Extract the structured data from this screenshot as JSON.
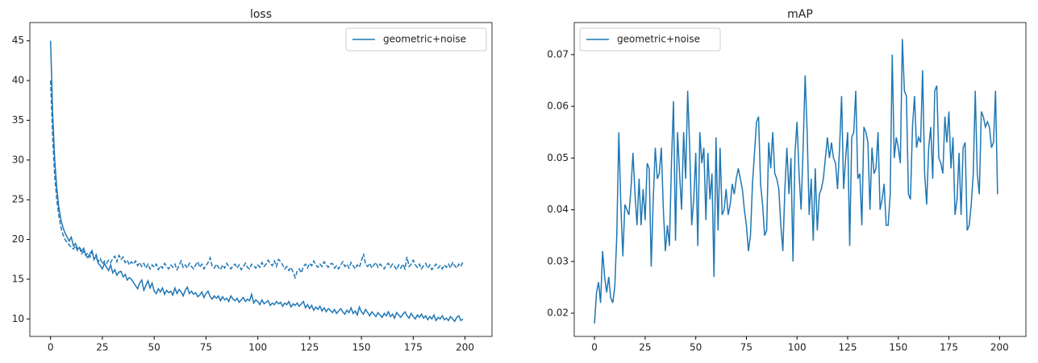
{
  "chart_data": [
    {
      "type": "line",
      "title": "loss",
      "legend": "upper right",
      "grid": false,
      "xlim": [
        -10,
        213
      ],
      "ylim": [
        7.8,
        47.3
      ],
      "xticks": [
        0,
        25,
        50,
        75,
        100,
        125,
        150,
        175,
        200
      ],
      "yticks": [
        10,
        15,
        20,
        25,
        30,
        35,
        40,
        45
      ],
      "x": [
        0,
        1,
        2,
        3,
        4,
        5,
        6,
        7,
        8,
        9,
        10,
        11,
        12,
        13,
        14,
        15,
        16,
        17,
        18,
        19,
        20,
        21,
        22,
        23,
        24,
        25,
        26,
        27,
        28,
        29,
        30,
        31,
        32,
        33,
        34,
        35,
        36,
        37,
        38,
        39,
        40,
        41,
        42,
        43,
        44,
        45,
        46,
        47,
        48,
        49,
        50,
        51,
        52,
        53,
        54,
        55,
        56,
        57,
        58,
        59,
        60,
        61,
        62,
        63,
        64,
        65,
        66,
        67,
        68,
        69,
        70,
        71,
        72,
        73,
        74,
        75,
        76,
        77,
        78,
        79,
        80,
        81,
        82,
        83,
        84,
        85,
        86,
        87,
        88,
        89,
        90,
        91,
        92,
        93,
        94,
        95,
        96,
        97,
        98,
        99,
        100,
        101,
        102,
        103,
        104,
        105,
        106,
        107,
        108,
        109,
        110,
        111,
        112,
        113,
        114,
        115,
        116,
        117,
        118,
        119,
        120,
        121,
        122,
        123,
        124,
        125,
        126,
        127,
        128,
        129,
        130,
        131,
        132,
        133,
        134,
        135,
        136,
        137,
        138,
        139,
        140,
        141,
        142,
        143,
        144,
        145,
        146,
        147,
        148,
        149,
        150,
        151,
        152,
        153,
        154,
        155,
        156,
        157,
        158,
        159,
        160,
        161,
        162,
        163,
        164,
        165,
        166,
        167,
        168,
        169,
        170,
        171,
        172,
        173,
        174,
        175,
        176,
        177,
        178,
        179,
        180,
        181,
        182,
        183,
        184,
        185,
        186,
        187,
        188,
        189,
        190,
        191,
        192,
        193,
        194,
        195,
        196,
        197,
        198,
        199
      ],
      "series": [
        {
          "name": "geometric+noise",
          "color": "#1f77b4",
          "linestyle": "solid",
          "values": [
            45,
            36,
            30,
            26.5,
            24,
            22.5,
            21.5,
            20.8,
            20.3,
            19.8,
            20.3,
            19.2,
            19.5,
            18.8,
            19.0,
            18.5,
            18.9,
            18.0,
            17.7,
            18.2,
            18.6,
            17.5,
            17.9,
            17.0,
            16.7,
            16.3,
            17.0,
            16.5,
            16.1,
            16.8,
            15.8,
            16.2,
            15.5,
            15.9,
            16.0,
            15.3,
            15.6,
            14.9,
            15.2,
            15.0,
            14.6,
            14.2,
            13.8,
            14.5,
            14.9,
            13.6,
            14.2,
            14.8,
            13.9,
            14.5,
            13.5,
            13.2,
            13.8,
            13.4,
            13.9,
            13.1,
            13.6,
            13.3,
            13.5,
            13.0,
            13.9,
            13.2,
            13.7,
            13.4,
            12.9,
            13.6,
            14.0,
            13.2,
            13.5,
            13.1,
            13.3,
            12.8,
            13.0,
            13.4,
            12.7,
            13.2,
            13.5,
            12.8,
            12.5,
            12.9,
            12.6,
            12.9,
            12.3,
            12.8,
            12.4,
            12.6,
            12.2,
            12.9,
            12.5,
            12.3,
            12.6,
            12.1,
            12.4,
            12.7,
            12.2,
            12.5,
            12.3,
            13.1,
            12.0,
            12.4,
            12.2,
            11.8,
            12.4,
            11.9,
            12.1,
            12.3,
            11.7,
            12.0,
            11.8,
            12.2,
            11.9,
            12.1,
            11.6,
            12.0,
            11.8,
            12.2,
            11.5,
            11.9,
            11.7,
            12.0,
            11.6,
            11.9,
            12.2,
            11.4,
            11.8,
            11.3,
            11.7,
            11.1,
            11.5,
            11.2,
            11.6,
            11.0,
            11.4,
            10.9,
            11.3,
            11.1,
            10.8,
            11.2,
            10.7,
            11.0,
            11.3,
            10.9,
            10.6,
            11.1,
            10.8,
            11.4,
            10.7,
            11.0,
            10.5,
            11.5,
            10.9,
            10.6,
            11.2,
            10.8,
            10.4,
            10.9,
            10.6,
            10.3,
            10.8,
            10.5,
            10.2,
            10.7,
            10.4,
            10.9,
            10.3,
            10.6,
            10.1,
            10.8,
            10.5,
            10.2,
            10.6,
            10.9,
            10.4,
            10.1,
            10.7,
            10.3,
            10.0,
            10.5,
            10.2,
            10.6,
            10.1,
            10.4,
            9.9,
            10.3,
            10.0,
            10.5,
            9.8,
            10.2,
            10.0,
            10.4,
            9.9,
            10.1,
            9.8,
            10.3,
            10.0,
            9.7,
            10.2,
            10.4,
            9.8,
            10.0
          ]
        },
        {
          "color": "#1f77b4",
          "linestyle": "dashed",
          "values": [
            40,
            33,
            28,
            25,
            23,
            21.5,
            20.6,
            20,
            19.6,
            19.3,
            19.0,
            18.8,
            19.2,
            18.6,
            18.9,
            18.2,
            18.5,
            18.0,
            18.3,
            17.8,
            18.4,
            17.5,
            18.1,
            17.2,
            17.6,
            16.9,
            17.3,
            17.0,
            17.4,
            17.1,
            17.6,
            17.9,
            17.2,
            18.0,
            17.5,
            17.8,
            17.1,
            17.4,
            16.8,
            17.2,
            16.9,
            17.3,
            16.7,
            17.1,
            16.6,
            17.0,
            16.4,
            16.9,
            16.3,
            16.8,
            16.5,
            16.9,
            16.2,
            16.7,
            16.4,
            17.0,
            16.6,
            16.3,
            16.8,
            16.5,
            16.9,
            16.2,
            16.7,
            17.3,
            16.5,
            16.8,
            16.4,
            17.0,
            16.6,
            16.3,
            16.8,
            17.2,
            16.5,
            16.9,
            16.3,
            16.7,
            17.1,
            17.7,
            16.6,
            16.4,
            16.9,
            16.5,
            16.2,
            16.8,
            16.4,
            17.0,
            16.6,
            16.3,
            16.7,
            16.9,
            16.4,
            16.8,
            16.2,
            16.6,
            17.0,
            16.5,
            16.3,
            16.9,
            16.7,
            16.4,
            16.8,
            16.5,
            17.1,
            16.6,
            16.9,
            17.4,
            17.0,
            16.7,
            17.3,
            16.6,
            17.5,
            17.2,
            16.8,
            16.3,
            16.6,
            16.1,
            16.5,
            15.9,
            15.2,
            16.0,
            16.3,
            15.8,
            16.6,
            16.9,
            16.4,
            17.0,
            16.7,
            17.3,
            16.8,
            16.5,
            16.9,
            16.6,
            17.2,
            16.8,
            16.5,
            16.9,
            17.0,
            16.4,
            16.7,
            16.3,
            16.8,
            17.2,
            16.6,
            16.9,
            16.4,
            17.1,
            16.7,
            16.3,
            16.8,
            16.5,
            17.3,
            18.2,
            16.9,
            16.6,
            17.0,
            16.4,
            16.8,
            17.1,
            16.5,
            16.9,
            16.6,
            16.3,
            16.8,
            17.0,
            16.5,
            16.9,
            16.6,
            16.2,
            16.8,
            16.4,
            16.9,
            16.3,
            17.8,
            16.6,
            16.9,
            17.4,
            16.8,
            16.5,
            16.9,
            16.3,
            16.7,
            17.0,
            16.4,
            16.8,
            16.2,
            16.6,
            16.9,
            16.4,
            16.7,
            16.3,
            16.8,
            16.5,
            16.9,
            16.4,
            17.1,
            16.7,
            16.4,
            16.9,
            16.6,
            17.2
          ]
        }
      ]
    },
    {
      "type": "line",
      "title": "mAP",
      "legend": "upper left",
      "grid": false,
      "xlim": [
        -10,
        213
      ],
      "ylim": [
        0.0155,
        0.0762
      ],
      "xticks": [
        0,
        25,
        50,
        75,
        100,
        125,
        150,
        175,
        200
      ],
      "yticks": [
        0.02,
        0.03,
        0.04,
        0.05,
        0.06,
        0.07
      ],
      "x": [
        0,
        1,
        2,
        3,
        4,
        5,
        6,
        7,
        8,
        9,
        10,
        11,
        12,
        13,
        14,
        15,
        16,
        17,
        18,
        19,
        20,
        21,
        22,
        23,
        24,
        25,
        26,
        27,
        28,
        29,
        30,
        31,
        32,
        33,
        34,
        35,
        36,
        37,
        38,
        39,
        40,
        41,
        42,
        43,
        44,
        45,
        46,
        47,
        48,
        49,
        50,
        51,
        52,
        53,
        54,
        55,
        56,
        57,
        58,
        59,
        60,
        61,
        62,
        63,
        64,
        65,
        66,
        67,
        68,
        69,
        70,
        71,
        72,
        73,
        74,
        75,
        76,
        77,
        78,
        79,
        80,
        81,
        82,
        83,
        84,
        85,
        86,
        87,
        88,
        89,
        90,
        91,
        92,
        93,
        94,
        95,
        96,
        97,
        98,
        99,
        100,
        101,
        102,
        103,
        104,
        105,
        106,
        107,
        108,
        109,
        110,
        111,
        112,
        113,
        114,
        115,
        116,
        117,
        118,
        119,
        120,
        121,
        122,
        123,
        124,
        125,
        126,
        127,
        128,
        129,
        130,
        131,
        132,
        133,
        134,
        135,
        136,
        137,
        138,
        139,
        140,
        141,
        142,
        143,
        144,
        145,
        146,
        147,
        148,
        149,
        150,
        151,
        152,
        153,
        154,
        155,
        156,
        157,
        158,
        159,
        160,
        161,
        162,
        163,
        164,
        165,
        166,
        167,
        168,
        169,
        170,
        171,
        172,
        173,
        174,
        175,
        176,
        177,
        178,
        179,
        180,
        181,
        182,
        183,
        184,
        185,
        186,
        187,
        188,
        189,
        190,
        191,
        192,
        193,
        194,
        195,
        196,
        197,
        198,
        199
      ],
      "series": [
        {
          "name": "geometric+noise",
          "color": "#1f77b4",
          "linestyle": "solid",
          "values": [
            0.018,
            0.024,
            0.026,
            0.022,
            0.032,
            0.027,
            0.024,
            0.027,
            0.023,
            0.022,
            0.025,
            0.035,
            0.055,
            0.041,
            0.031,
            0.041,
            0.04,
            0.039,
            0.044,
            0.051,
            0.043,
            0.037,
            0.046,
            0.037,
            0.044,
            0.038,
            0.049,
            0.048,
            0.029,
            0.042,
            0.052,
            0.046,
            0.047,
            0.052,
            0.04,
            0.032,
            0.037,
            0.033,
            0.049,
            0.061,
            0.034,
            0.055,
            0.047,
            0.04,
            0.055,
            0.046,
            0.063,
            0.052,
            0.037,
            0.042,
            0.051,
            0.033,
            0.055,
            0.049,
            0.052,
            0.038,
            0.051,
            0.042,
            0.047,
            0.027,
            0.054,
            0.036,
            0.052,
            0.039,
            0.04,
            0.044,
            0.039,
            0.041,
            0.045,
            0.043,
            0.046,
            0.048,
            0.046,
            0.044,
            0.04,
            0.037,
            0.032,
            0.035,
            0.045,
            0.051,
            0.057,
            0.058,
            0.045,
            0.041,
            0.035,
            0.036,
            0.053,
            0.048,
            0.055,
            0.047,
            0.046,
            0.044,
            0.037,
            0.032,
            0.044,
            0.052,
            0.043,
            0.05,
            0.03,
            0.051,
            0.057,
            0.047,
            0.04,
            0.052,
            0.066,
            0.055,
            0.039,
            0.046,
            0.034,
            0.048,
            0.036,
            0.043,
            0.044,
            0.046,
            0.05,
            0.054,
            0.05,
            0.053,
            0.05,
            0.049,
            0.044,
            0.052,
            0.062,
            0.044,
            0.05,
            0.055,
            0.033,
            0.054,
            0.055,
            0.063,
            0.046,
            0.047,
            0.037,
            0.056,
            0.055,
            0.053,
            0.04,
            0.052,
            0.047,
            0.048,
            0.055,
            0.04,
            0.042,
            0.045,
            0.037,
            0.037,
            0.043,
            0.07,
            0.05,
            0.054,
            0.052,
            0.049,
            0.073,
            0.063,
            0.062,
            0.043,
            0.042,
            0.056,
            0.062,
            0.052,
            0.054,
            0.053,
            0.067,
            0.047,
            0.041,
            0.052,
            0.056,
            0.046,
            0.063,
            0.064,
            0.05,
            0.049,
            0.047,
            0.058,
            0.053,
            0.059,
            0.048,
            0.054,
            0.039,
            0.042,
            0.051,
            0.039,
            0.052,
            0.053,
            0.036,
            0.037,
            0.041,
            0.047,
            0.063,
            0.047,
            0.043,
            0.059,
            0.058,
            0.056,
            0.057,
            0.056,
            0.052,
            0.053,
            0.063,
            0.043
          ]
        }
      ]
    }
  ]
}
